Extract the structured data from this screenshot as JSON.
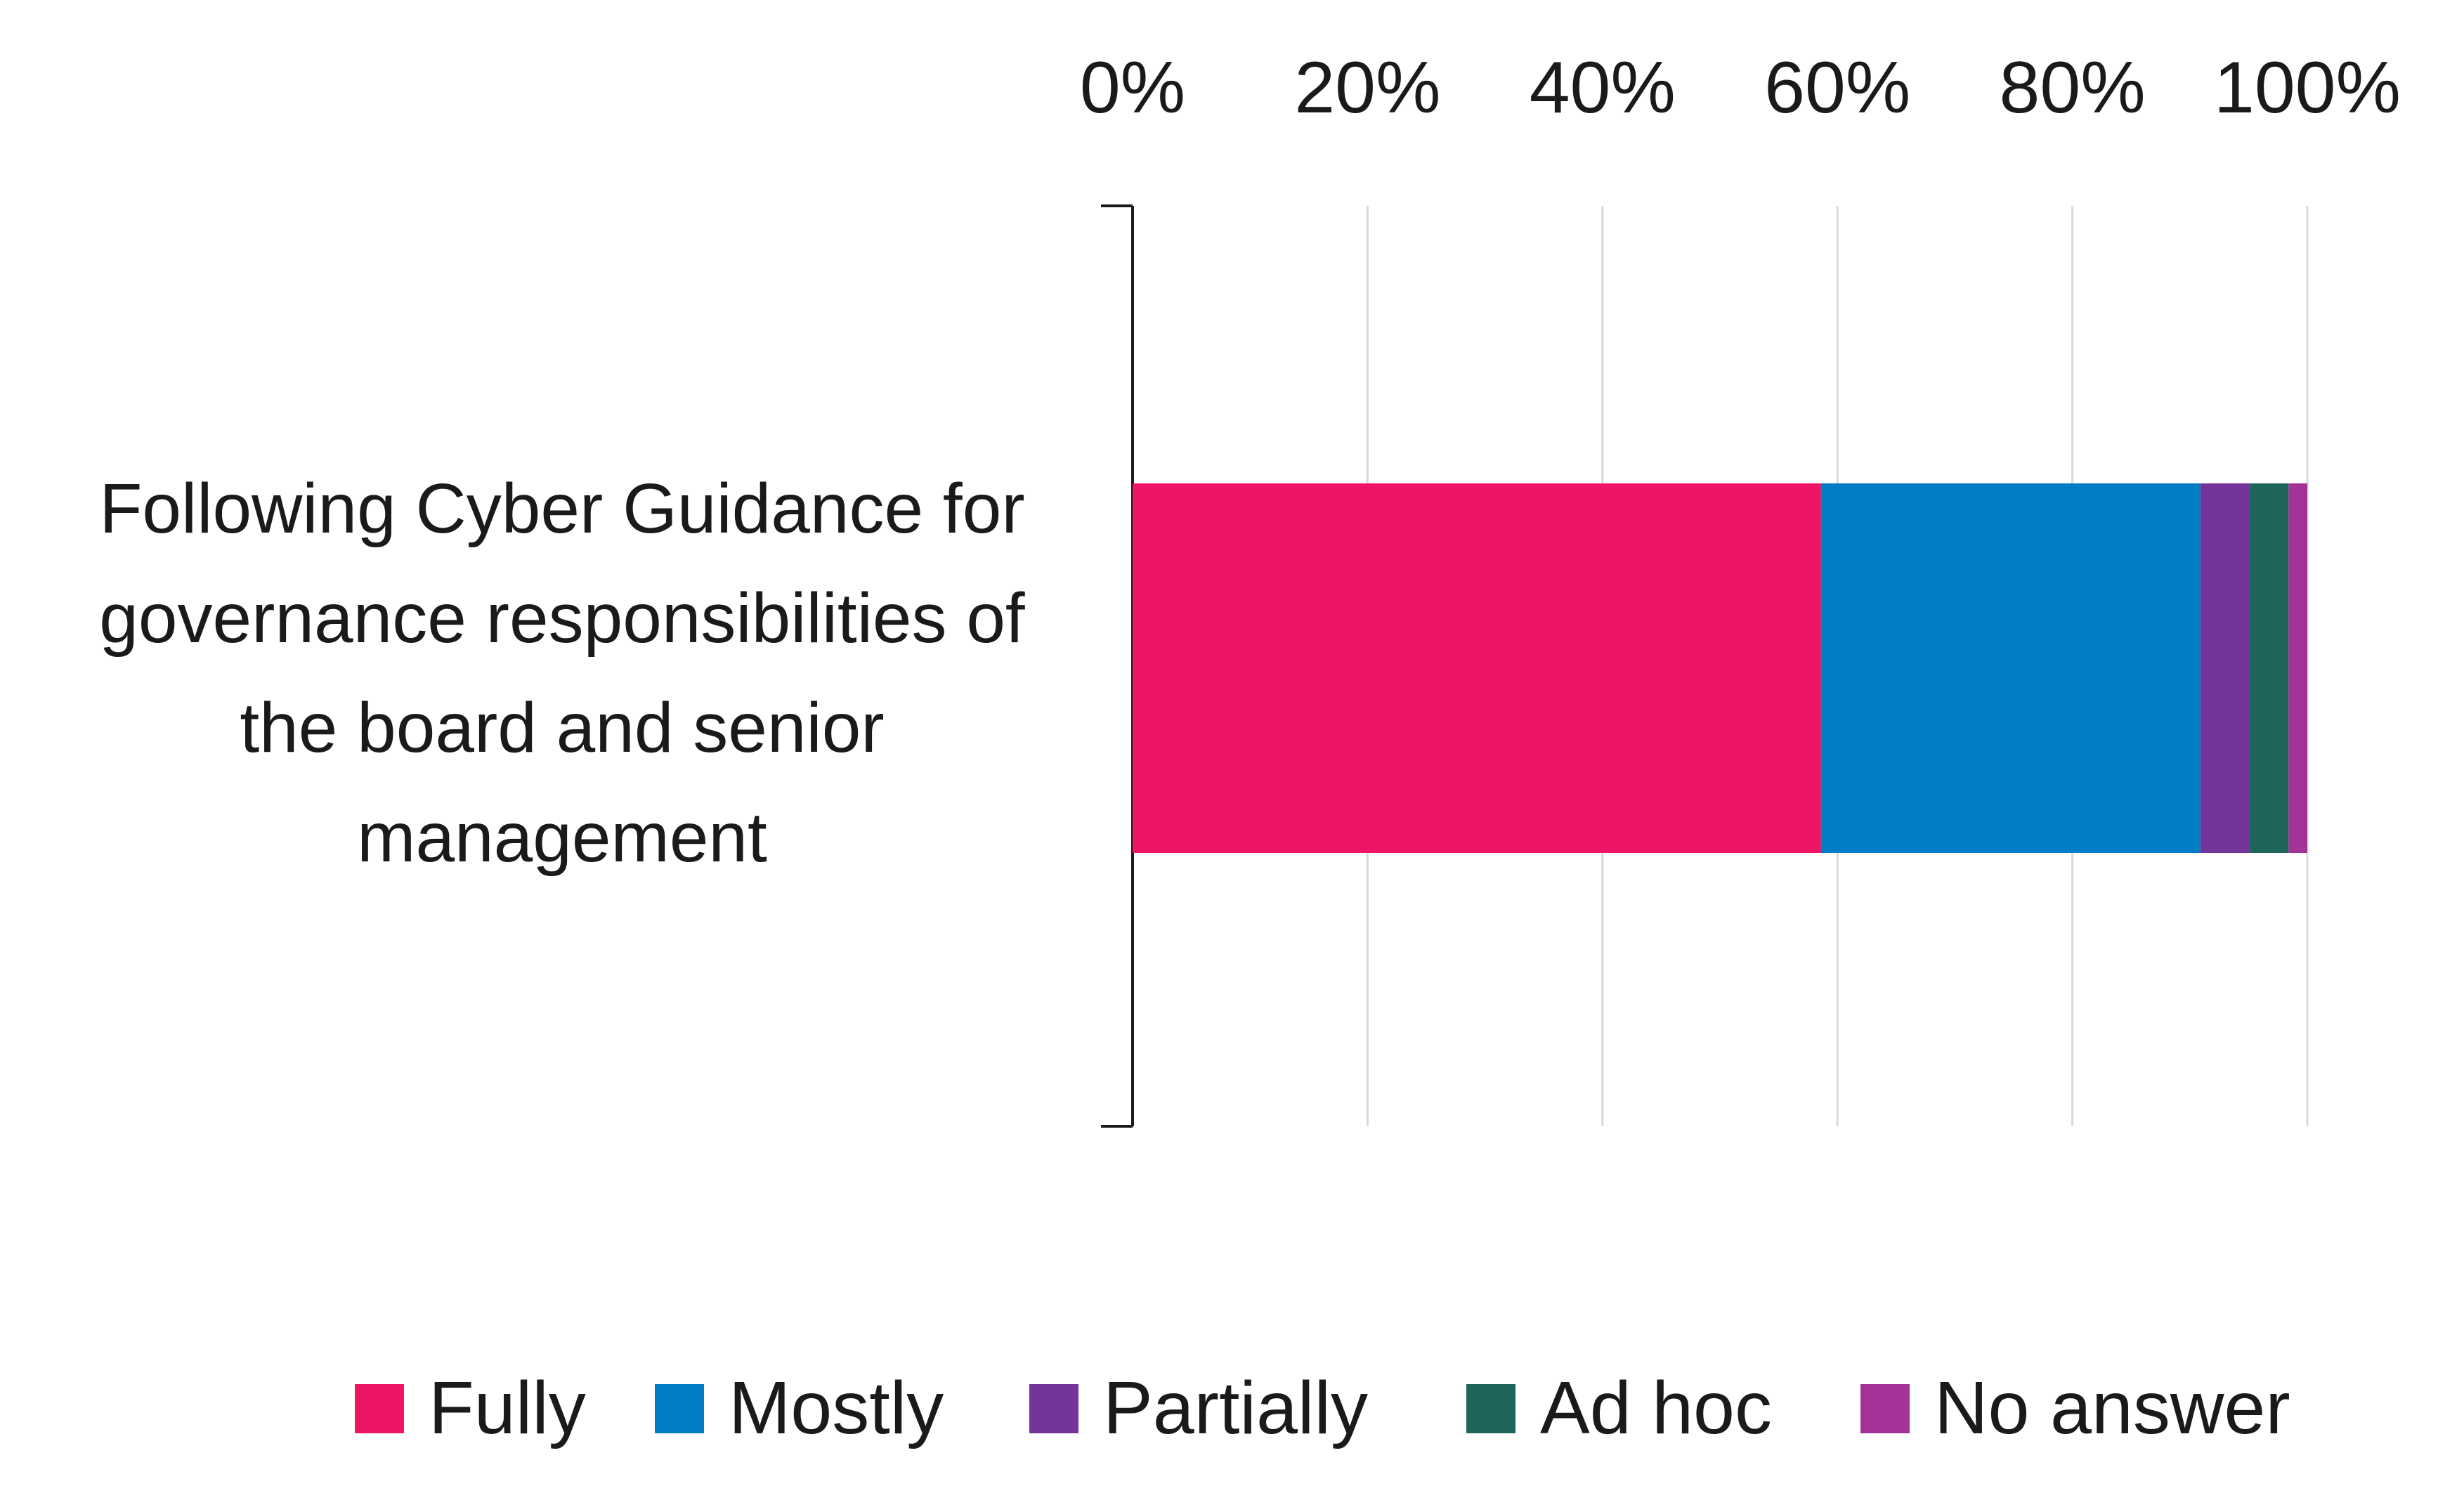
{
  "chart_data": {
    "type": "bar",
    "orientation": "horizontal",
    "stacked": true,
    "categories": [
      "Following Cyber Guidance for governance responsibilities of the board and senior management"
    ],
    "category_label_lines": [
      "Following Cyber Guidance for",
      "governance responsibilities of",
      "the board and senior",
      "management"
    ],
    "series": [
      {
        "name": "Fully",
        "values": [
          58.6
        ],
        "color": "#EE1566"
      },
      {
        "name": "Mostly",
        "values": [
          32.3
        ],
        "color": "#007DC4"
      },
      {
        "name": "Partially",
        "values": [
          4.2
        ],
        "color": "#74349A"
      },
      {
        "name": "Ad hoc",
        "values": [
          3.3
        ],
        "color": "#1E665C"
      },
      {
        "name": "No answer",
        "values": [
          1.6
        ],
        "color": "#A43397"
      }
    ],
    "xlim": [
      0,
      100
    ],
    "x_ticks": [
      0,
      20,
      40,
      60,
      80,
      100
    ],
    "x_tick_labels": [
      "0%",
      "20%",
      "40%",
      "60%",
      "80%",
      "100%"
    ],
    "x_axis_position": "top",
    "grid": true,
    "legend_position": "bottom",
    "title": "",
    "xlabel": "",
    "ylabel": ""
  }
}
